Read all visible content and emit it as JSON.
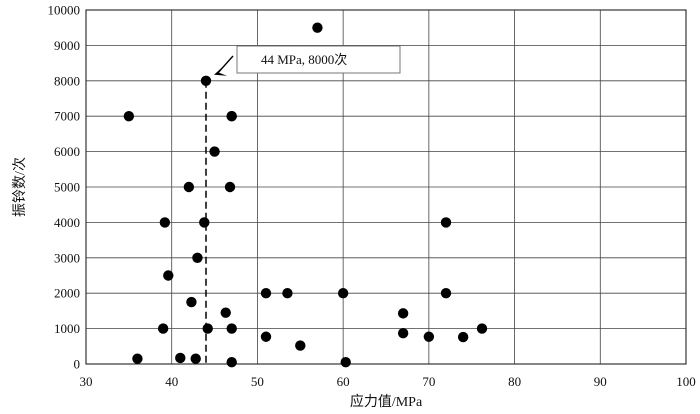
{
  "chart_data": {
    "type": "scatter",
    "title": "",
    "xlabel": "应力值/MPa",
    "ylabel": "振铃数/次",
    "xlim": [
      30,
      100
    ],
    "ylim": [
      0,
      10000
    ],
    "xticks": [
      30,
      40,
      50,
      60,
      70,
      80,
      90,
      100
    ],
    "yticks": [
      0,
      1000,
      2000,
      3000,
      4000,
      5000,
      6000,
      7000,
      8000,
      9000,
      10000
    ],
    "grid": true,
    "legend": "none",
    "marker_color": "#000000",
    "series": [
      {
        "x": [
          35,
          36,
          39,
          39.2,
          39.6,
          41,
          42,
          42.3,
          42.8,
          43,
          43.8,
          44,
          44.2,
          45,
          46.3,
          46.8,
          47,
          47,
          47,
          47,
          51,
          51,
          53.5,
          55,
          57,
          60,
          60.3,
          67,
          67,
          70,
          72,
          72,
          74,
          76.2
        ],
        "y": [
          7000,
          150,
          1000,
          4000,
          2500,
          170,
          5000,
          1750,
          150,
          3000,
          4000,
          8000,
          1000,
          6000,
          1450,
          5000,
          7000,
          1000,
          50,
          7000,
          2000,
          770,
          2000,
          520,
          9500,
          2000,
          50,
          1430,
          870,
          770,
          4000,
          2000,
          760,
          1000
        ]
      }
    ],
    "annotation": {
      "text": "44 MPa, 8000次",
      "point": [
        44,
        8000
      ],
      "guide_line": "dashed vertical to x-axis"
    }
  }
}
